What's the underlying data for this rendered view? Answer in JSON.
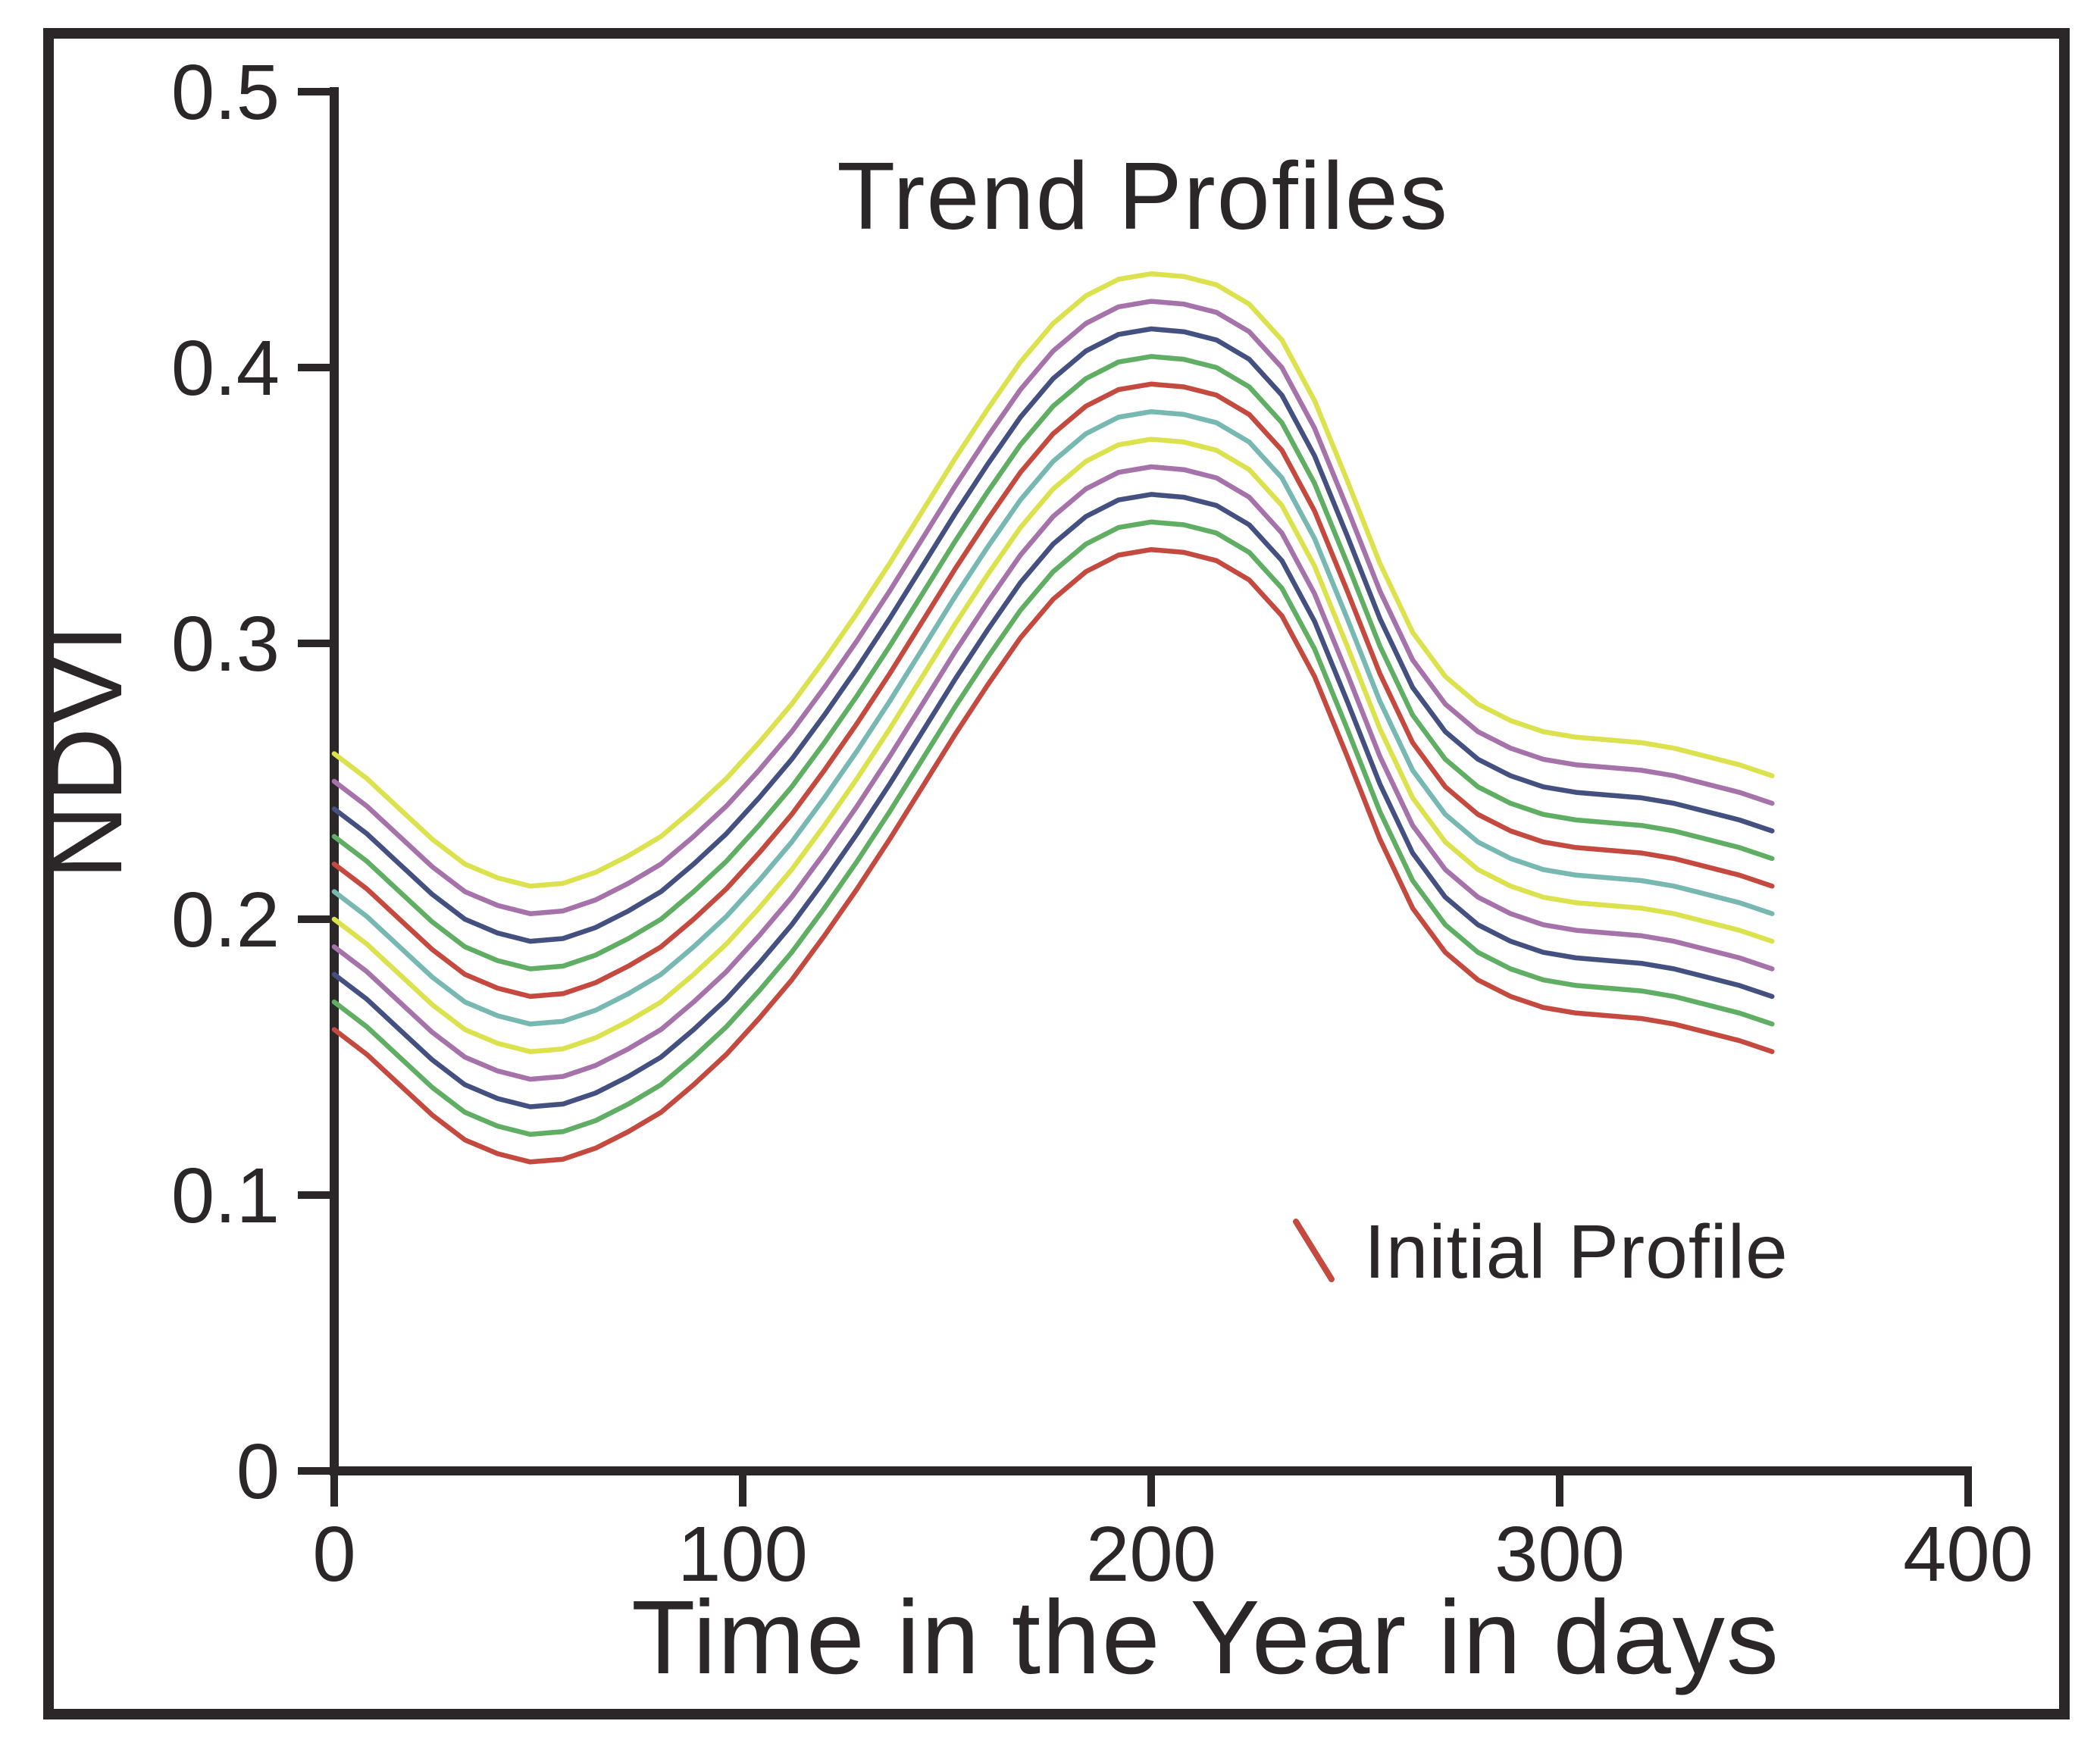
{
  "figure": {
    "background_color": "#ffffff",
    "border_color": "#2b2729",
    "text_color": "#2b2729"
  },
  "chart_data": {
    "type": "line",
    "title": "Trend Profiles",
    "xlabel": "Time in the Year in days",
    "ylabel": "NDVI",
    "xlim": [
      0,
      400
    ],
    "ylim": [
      0,
      0.5
    ],
    "grid": false,
    "xticks": [
      {
        "value": 0,
        "label": "0"
      },
      {
        "value": 100,
        "label": "100"
      },
      {
        "value": 200,
        "label": "200"
      },
      {
        "value": 300,
        "label": "300"
      },
      {
        "value": 400,
        "label": "400"
      }
    ],
    "yticks": [
      {
        "value": 0,
        "label": "0"
      },
      {
        "value": 0.1,
        "label": "0.1"
      },
      {
        "value": 0.2,
        "label": "0.2"
      },
      {
        "value": 0.3,
        "label": "0.3"
      },
      {
        "value": 0.4,
        "label": "0.4"
      },
      {
        "value": 0.5,
        "label": "0.5"
      }
    ],
    "x_days": [
      0,
      8,
      16,
      24,
      32,
      40,
      48,
      56,
      64,
      72,
      80,
      88,
      96,
      104,
      112,
      120,
      128,
      136,
      144,
      152,
      160,
      168,
      176,
      184,
      192,
      200,
      208,
      216,
      224,
      232,
      240,
      248,
      256,
      264,
      272,
      280,
      288,
      296,
      304,
      312,
      320,
      328,
      336,
      344,
      352
    ],
    "initial_profile_values": [
      0.16,
      0.151,
      0.14,
      0.129,
      0.12,
      0.115,
      0.112,
      0.113,
      0.117,
      0.123,
      0.13,
      0.14,
      0.151,
      0.164,
      0.178,
      0.194,
      0.211,
      0.229,
      0.248,
      0.267,
      0.285,
      0.302,
      0.316,
      0.326,
      0.332,
      0.334,
      0.333,
      0.33,
      0.323,
      0.31,
      0.288,
      0.259,
      0.229,
      0.204,
      0.188,
      0.178,
      0.172,
      0.168,
      0.166,
      0.165,
      0.164,
      0.162,
      0.159,
      0.156,
      0.152
    ],
    "series": [
      {
        "label": "Initial Profile",
        "color": "#c4493f",
        "ndvi_offset": 0.0
      },
      {
        "label": "",
        "color": "#5fae63",
        "ndvi_offset": 0.01
      },
      {
        "label": "",
        "color": "#44507f",
        "ndvi_offset": 0.02
      },
      {
        "label": "",
        "color": "#a572aa",
        "ndvi_offset": 0.03
      },
      {
        "label": "",
        "color": "#dce24e",
        "ndvi_offset": 0.04
      },
      {
        "label": "",
        "color": "#78b8b2",
        "ndvi_offset": 0.05
      },
      {
        "label": "",
        "color": "#c4493f",
        "ndvi_offset": 0.06
      },
      {
        "label": "",
        "color": "#5fae63",
        "ndvi_offset": 0.07
      },
      {
        "label": "",
        "color": "#44507f",
        "ndvi_offset": 0.08
      },
      {
        "label": "",
        "color": "#a572aa",
        "ndvi_offset": 0.09
      },
      {
        "label": "",
        "color": "#dce24e",
        "ndvi_offset": 0.1
      }
    ],
    "legend": {
      "label": "Initial Profile",
      "marker_color": "#c4493f",
      "position": "lower right"
    },
    "note": "Each trend profile is the initial seasonal NDVI profile shifted upward by its NDVI offset; curves span days 0 to 352."
  }
}
